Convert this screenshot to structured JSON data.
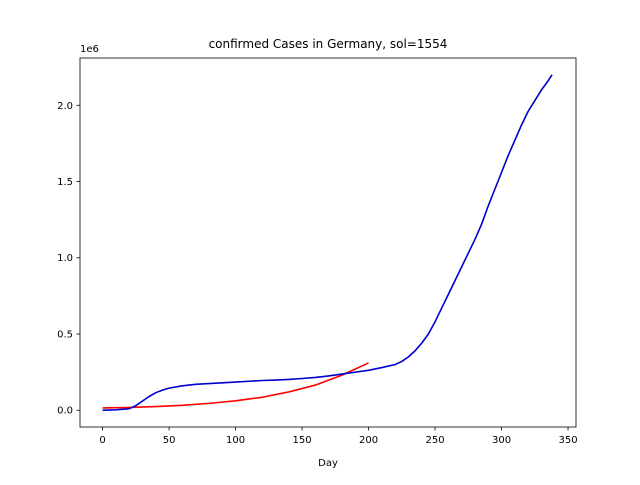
{
  "chart_data": {
    "type": "line",
    "title": "confirmed Cases in Germany, sol=1554",
    "xlabel": "Day",
    "ylabel": "",
    "y_offset_text": "1e6",
    "xlim": [
      -17,
      356
    ],
    "ylim": [
      -0.11,
      2.31
    ],
    "grid": false,
    "x_ticks": [
      0,
      50,
      100,
      150,
      200,
      250,
      300,
      350
    ],
    "x_tick_labels": [
      "0",
      "50",
      "100",
      "150",
      "200",
      "250",
      "300",
      "350"
    ],
    "y_ticks": [
      0,
      0.5,
      1.0,
      1.5,
      2.0
    ],
    "y_tick_labels": [
      "0.0",
      "0.5",
      "1.0",
      "1.5",
      "2.0"
    ],
    "series": [
      {
        "color": "#ff0000",
        "x": [
          0,
          20,
          40,
          60,
          80,
          100,
          120,
          140,
          160,
          180,
          200
        ],
        "y": [
          0.015,
          0.018,
          0.024,
          0.032,
          0.045,
          0.062,
          0.085,
          0.12,
          0.165,
          0.23,
          0.31
        ]
      },
      {
        "color": "#0000cd",
        "x": [
          0,
          10,
          20,
          25,
          30,
          35,
          40,
          45,
          50,
          60,
          70,
          80,
          90,
          100,
          110,
          120,
          130,
          140,
          150,
          160,
          170,
          180,
          190,
          200,
          210,
          220,
          225,
          230,
          235,
          240,
          245,
          250,
          255,
          260,
          265,
          270,
          275,
          280,
          285,
          290,
          295,
          300,
          305,
          310,
          315,
          320,
          325,
          330,
          335,
          338
        ],
        "y": [
          0.0,
          0.003,
          0.01,
          0.03,
          0.06,
          0.09,
          0.115,
          0.132,
          0.145,
          0.16,
          0.17,
          0.175,
          0.18,
          0.185,
          0.19,
          0.195,
          0.198,
          0.202,
          0.208,
          0.215,
          0.225,
          0.237,
          0.25,
          0.262,
          0.28,
          0.3,
          0.32,
          0.35,
          0.39,
          0.44,
          0.5,
          0.58,
          0.67,
          0.76,
          0.85,
          0.94,
          1.03,
          1.12,
          1.22,
          1.34,
          1.45,
          1.56,
          1.67,
          1.77,
          1.87,
          1.96,
          2.03,
          2.1,
          2.16,
          2.2
        ]
      }
    ]
  }
}
